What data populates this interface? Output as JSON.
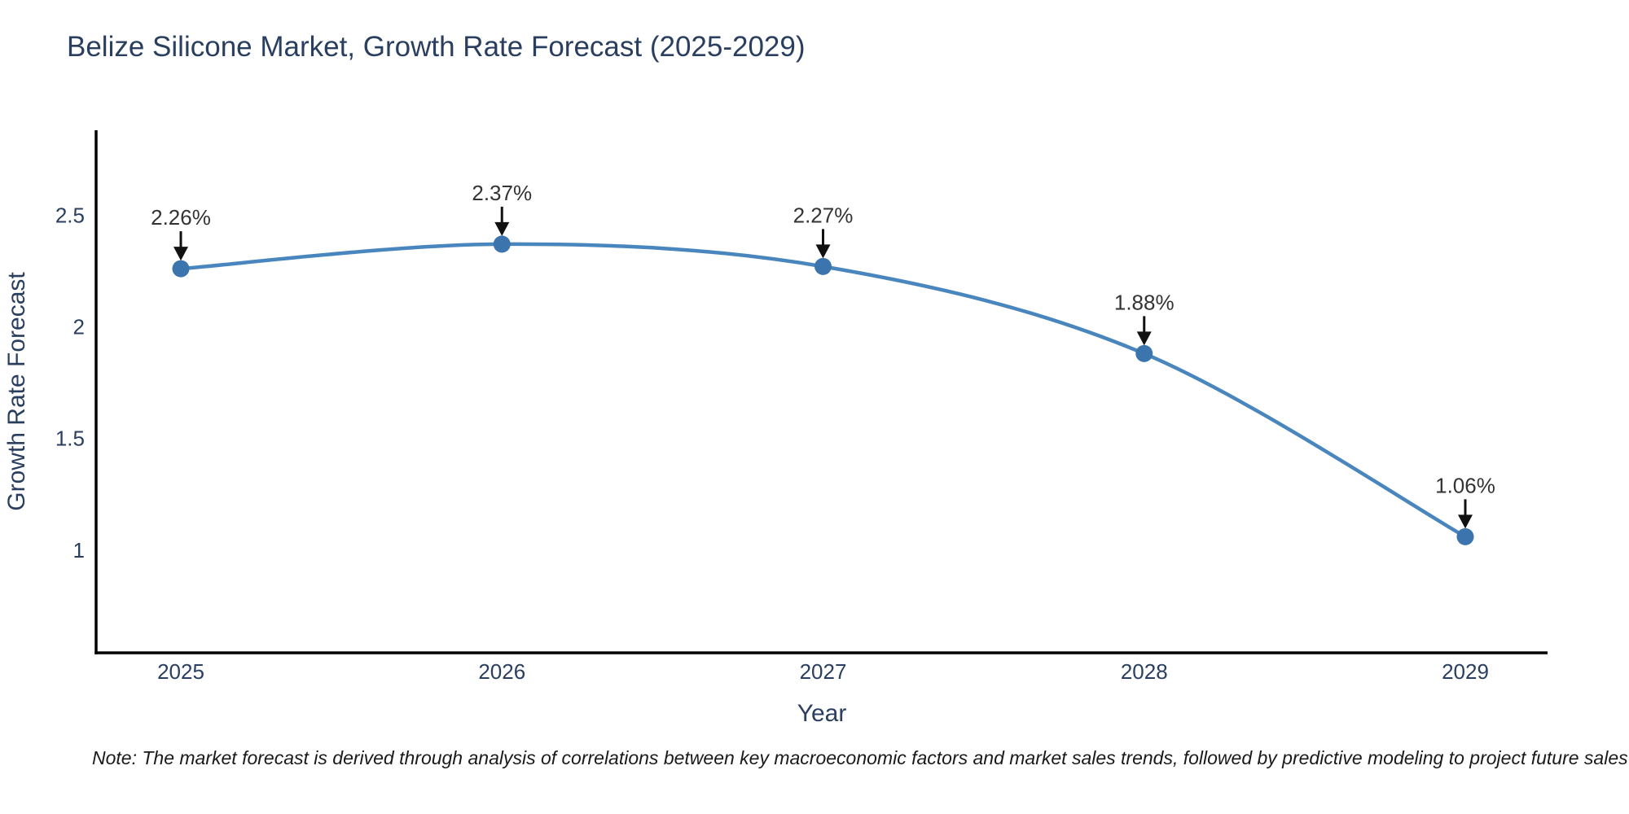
{
  "header": {
    "title": "Belize Silicone Market, Growth Rate Forecast (2025-2029)"
  },
  "footer": {
    "note": "Note: The market forecast is derived through analysis of correlations between key macroeconomic factors and market sales trends, followed by predictive modeling to project future sales"
  },
  "chart_data": {
    "type": "line",
    "title": "Belize Silicone Market, Growth Rate Forecast (2025-2029)",
    "x": [
      "2025",
      "2026",
      "2027",
      "2028",
      "2029"
    ],
    "y": [
      2.26,
      2.37,
      2.27,
      1.88,
      1.06
    ],
    "point_labels": [
      "2.26%",
      "2.37%",
      "2.27%",
      "1.88%",
      "1.06%"
    ],
    "xlabel": "Year",
    "ylabel": "Growth Rate Forecast",
    "yticks": [
      1,
      1.5,
      2,
      2.5
    ],
    "ylim": [
      0.54,
      2.88
    ],
    "line_shape": "spline",
    "grid": false,
    "legend": "none",
    "colors": {
      "line": "#4a86be",
      "marker": "#3c74ae",
      "arrow": "#111111",
      "axis": "#000000",
      "text": "#2a3f5f",
      "annotation_text": "#333333"
    }
  }
}
